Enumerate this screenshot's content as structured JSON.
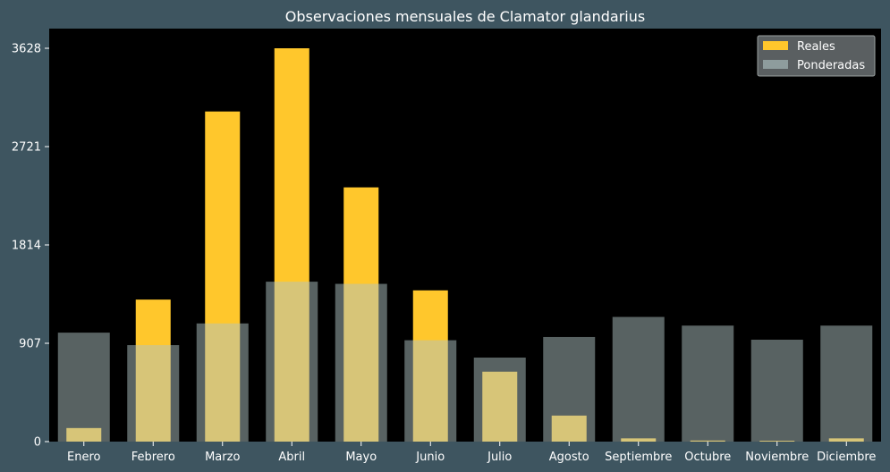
{
  "chart_data": {
    "type": "bar",
    "title": "Observaciones mensuales de Clamator glandarius",
    "xlabel": "",
    "ylabel": "",
    "categories": [
      "Enero",
      "Febrero",
      "Marzo",
      "Abril",
      "Mayo",
      "Junio",
      "Julio",
      "Agosto",
      "Septiembre",
      "Octubre",
      "Noviembre",
      "Diciembre"
    ],
    "series": [
      {
        "name": "Reales",
        "color": "#ffc72c",
        "values": [
          125,
          1310,
          3045,
          3628,
          2345,
          1395,
          645,
          240,
          30,
          10,
          8,
          30
        ]
      },
      {
        "name": "Ponderadas",
        "color": "#b0c4c4",
        "values": [
          1005,
          890,
          1090,
          1475,
          1455,
          935,
          775,
          965,
          1150,
          1070,
          940,
          1070
        ]
      }
    ],
    "yticks": [
      0,
      907,
      1814,
      2721,
      3628
    ],
    "ylim": [
      0,
      3628
    ],
    "legend": "top-right",
    "grid": false
  }
}
